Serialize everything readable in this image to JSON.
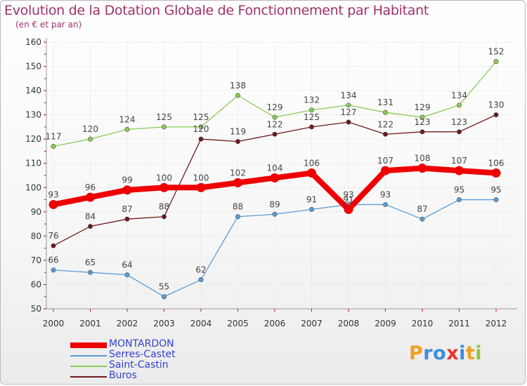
{
  "title": "Evolution de la Dotation Globale de Fonctionnement par Habitant",
  "subtitle": "(en € et par an)",
  "logo": {
    "text": "Proxiti",
    "letters": [
      {
        "char": "P",
        "color": "#f0a020"
      },
      {
        "char": "r",
        "color": "#3a8fd8"
      },
      {
        "char": "o",
        "color": "#3a8fd8"
      },
      {
        "char": "x",
        "color": "#e8342c"
      },
      {
        "char": "i",
        "color": "#3a8fd8"
      },
      {
        "char": "t",
        "color": "#f0a020"
      },
      {
        "char": "i",
        "color": "#8cc63f"
      }
    ]
  },
  "chart_data": {
    "type": "line",
    "title": "Evolution de la Dotation Globale de Fonctionnement par Habitant",
    "subtitle": "(en € et par an)",
    "xlabel": "",
    "ylabel": "",
    "ylim": [
      50,
      160
    ],
    "yticks": [
      "50",
      "60",
      "70",
      "80",
      "90",
      "100",
      "110",
      "120",
      "130",
      "140",
      "150",
      "160"
    ],
    "categories": [
      "2000",
      "2001",
      "2002",
      "2003",
      "2004",
      "2005",
      "2006",
      "2007",
      "2008",
      "2009",
      "2010",
      "2011",
      "2012"
    ],
    "grid": true,
    "legend": "bottom-left",
    "series": [
      {
        "name": "Saint-Castin",
        "color": "#88cc55",
        "emphasis": false,
        "values": [
          117,
          120,
          124,
          125,
          125,
          138,
          129,
          132,
          134,
          131,
          129,
          134,
          152
        ]
      },
      {
        "name": "Buros",
        "color": "#6b1a1a",
        "emphasis": false,
        "values": [
          76,
          84,
          87,
          88,
          120,
          119,
          122,
          125,
          127,
          122,
          123,
          123,
          130
        ]
      },
      {
        "name": "Serres-Castet",
        "color": "#5a9bd5",
        "emphasis": false,
        "values": [
          66,
          65,
          64,
          55,
          62,
          88,
          89,
          91,
          93,
          93,
          87,
          95,
          95
        ]
      },
      {
        "name": "MONTARDON",
        "color": "#ee0000",
        "emphasis": true,
        "values": [
          93,
          96,
          99,
          100,
          100,
          102,
          104,
          106,
          91,
          107,
          108,
          107,
          106
        ]
      }
    ],
    "legend_order": [
      "MONTARDON",
      "Serres-Castet",
      "Saint-Castin",
      "Buros"
    ],
    "legend_colors": {
      "MONTARDON": "#3344cc",
      "Serres-Castet": "#3344cc",
      "Saint-Castin": "#3344cc",
      "Buros": "#3344cc"
    }
  }
}
